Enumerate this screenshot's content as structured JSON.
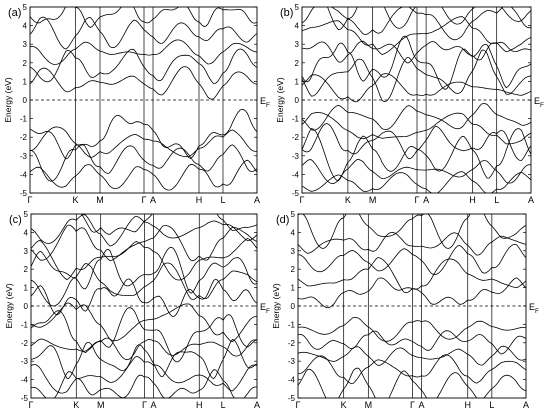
{
  "chart_data": [
    {
      "type": "line",
      "panel_label": "(a)",
      "ylabel": "Energy (eV)",
      "ylim": [
        -5,
        5
      ],
      "yticks": [
        -5,
        -4,
        -3,
        -2,
        -1,
        0,
        1,
        2,
        3,
        4,
        5
      ],
      "xticks": [
        "Γ",
        "K",
        "M",
        "Γ",
        "A",
        "H",
        "L",
        "A"
      ],
      "fermi_label": "E",
      "fermi_sub": "F",
      "fermi_level": 0
    },
    {
      "type": "line",
      "panel_label": "(b)",
      "ylabel": "Energy (eV)",
      "ylim": [
        -5,
        5
      ],
      "yticks": [
        -5,
        -4,
        -3,
        -2,
        -1,
        0,
        1,
        2,
        3,
        4,
        5
      ],
      "xticks": [
        "Γ",
        "K",
        "M",
        "Γ",
        "A",
        "H",
        "L",
        "A"
      ],
      "fermi_label": "E",
      "fermi_sub": "F",
      "fermi_level": 0
    },
    {
      "type": "line",
      "panel_label": "(c)",
      "ylabel": "Energy (eV)",
      "ylim": [
        -5,
        5
      ],
      "yticks": [
        -5,
        -4,
        -3,
        -2,
        -1,
        0,
        1,
        2,
        3,
        4,
        5
      ],
      "xticks": [
        "Γ",
        "K",
        "M",
        "Γ",
        "A",
        "H",
        "L",
        "A"
      ],
      "fermi_label": "E",
      "fermi_sub": "F",
      "fermi_level": 0
    },
    {
      "type": "line",
      "panel_label": "(d)",
      "ylabel": "Energy (eV)",
      "ylim": [
        -5,
        5
      ],
      "yticks": [
        -5,
        -4,
        -3,
        -2,
        -1,
        0,
        1,
        2,
        3,
        4,
        5
      ],
      "xticks": [
        "Γ",
        "K",
        "M",
        "Γ",
        "A",
        "H",
        "L",
        "A"
      ],
      "fermi_label": "E",
      "fermi_sub": "F",
      "fermi_level": 0
    }
  ]
}
